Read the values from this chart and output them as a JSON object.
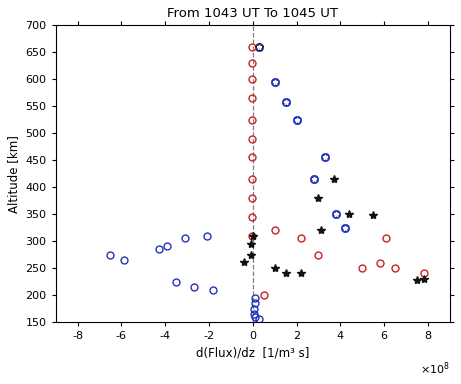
{
  "title": "From 1043 UT To 1045 UT",
  "xlabel": "d(Flux)/dz  [1/m³ s]",
  "ylabel": "Altitude [km]",
  "xlim": [
    -900000000.0,
    900000000.0
  ],
  "ylim": [
    150,
    700
  ],
  "xticks": [
    -8,
    -6,
    -4,
    -2,
    0,
    2,
    4,
    6,
    8
  ],
  "yticks": [
    150,
    200,
    250,
    300,
    350,
    400,
    450,
    500,
    550,
    600,
    650,
    700
  ],
  "blue_open_x": [
    -6.5,
    -5.9,
    -4.3,
    -3.9,
    -3.5,
    -3.1,
    -2.7,
    -2.1,
    -1.8,
    0.1,
    0.1,
    0.05,
    0.05,
    0.1,
    0.3
  ],
  "blue_open_y": [
    275,
    265,
    285,
    290,
    225,
    305,
    215,
    310,
    210,
    195,
    185,
    175,
    165,
    160,
    155
  ],
  "blue_filled_x": [
    0.3,
    1.0,
    1.5,
    2.0,
    2.8,
    3.3,
    3.8,
    4.2
  ],
  "blue_filled_y": [
    660,
    595,
    558,
    525,
    415,
    455,
    350,
    325
  ],
  "red_open_x": [
    -0.05,
    -0.05,
    -0.05,
    -0.05,
    -0.05,
    -0.05,
    -0.05,
    -0.05,
    -0.05,
    -0.05,
    -0.05,
    0.5,
    1.0,
    2.2,
    3.0,
    5.0,
    5.8,
    6.5,
    7.8,
    6.1
  ],
  "red_open_y": [
    660,
    630,
    600,
    565,
    525,
    490,
    455,
    415,
    380,
    345,
    310,
    200,
    320,
    305,
    275,
    250,
    260,
    250,
    240,
    305
  ],
  "black_star_x": [
    0.3,
    -0.1,
    -0.1,
    -0.4,
    0.0,
    1.0,
    1.5,
    2.2,
    3.0,
    3.7,
    4.4,
    3.1,
    5.5,
    7.5,
    7.8
  ],
  "black_star_y": [
    660,
    295,
    275,
    262,
    310,
    250,
    240,
    240,
    380,
    415,
    350,
    320,
    348,
    228,
    230
  ],
  "blue_color": "#2233bb",
  "red_color": "#cc2222",
  "black_color": "#111111",
  "dashed_line_x": 0.0,
  "scale": 100000000.0,
  "circle_size": 5,
  "star_size": 5
}
